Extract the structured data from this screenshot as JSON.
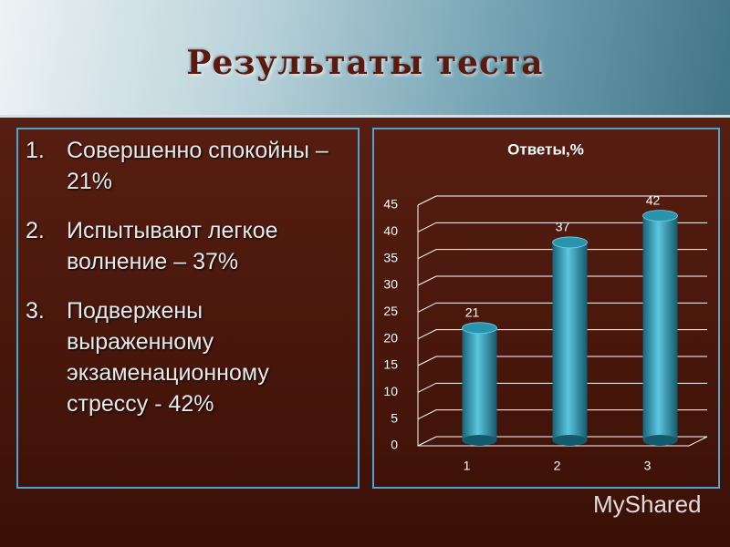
{
  "header": {
    "title": "Результаты теста"
  },
  "list": [
    {
      "number": "1.",
      "text": "Совершенно спокойны – 21%"
    },
    {
      "number": "2.",
      "text": "Испытывают легкое волнение – 37%"
    },
    {
      "number": "3.",
      "text": "Подвержены выраженному экзаменационному стрессу  - 42%"
    }
  ],
  "chart_data": {
    "type": "bar",
    "title": "Ответы,%",
    "categories": [
      "1",
      "2",
      "3"
    ],
    "values": [
      21,
      37,
      42
    ],
    "color": "#2a93ad",
    "ylim": [
      0,
      45
    ],
    "yticks": [
      0,
      5,
      10,
      15,
      20,
      25,
      30,
      35,
      40,
      45
    ],
    "grid": true
  },
  "watermark": "MyShared"
}
